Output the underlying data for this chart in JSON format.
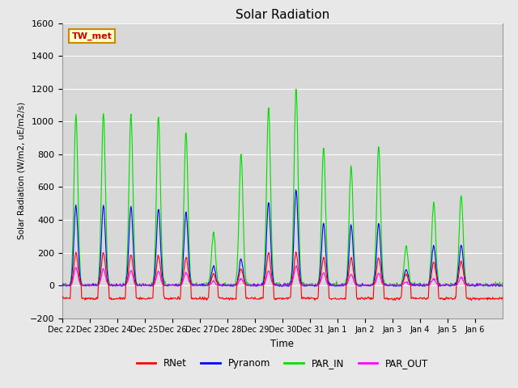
{
  "title": "Solar Radiation",
  "ylabel": "Solar Radiation (W/m2, uE/m2/s)",
  "xlabel": "Time",
  "ylim": [
    -200,
    1600
  ],
  "yticks": [
    -200,
    0,
    200,
    400,
    600,
    800,
    1000,
    1200,
    1400,
    1600
  ],
  "background_color": "#e8e8e8",
  "plot_bg_color": "#d8d8d8",
  "grid_color": "#ffffff",
  "station_label": "TW_met",
  "station_label_color": "#cc0000",
  "station_label_bg": "#ffffcc",
  "station_label_border": "#cc8800",
  "line_colors": {
    "RNet": "#ff0000",
    "Pyranom": "#0000ff",
    "PAR_IN": "#00dd00",
    "PAR_OUT": "#ff00ff"
  },
  "tick_labels": [
    "Dec 22",
    "Dec 23",
    "Dec 24",
    "Dec 25",
    "Dec 26",
    "Dec 27",
    "Dec 28",
    "Dec 29",
    "Dec 30",
    "Dec 31",
    "Jan 1",
    "Jan 2",
    "Jan 3",
    "Jan 4",
    "Jan 5",
    "Jan 6"
  ],
  "par_in_peaks": [
    1050,
    1050,
    1040,
    1030,
    940,
    330,
    800,
    1090,
    1210,
    850,
    730,
    850,
    240,
    510,
    550,
    0
  ],
  "pyranom_peaks": [
    490,
    490,
    480,
    470,
    450,
    120,
    160,
    510,
    590,
    380,
    370,
    380,
    100,
    240,
    250,
    0
  ],
  "par_out_peaks": [
    110,
    100,
    90,
    85,
    80,
    25,
    40,
    90,
    120,
    75,
    70,
    75,
    20,
    40,
    50,
    0
  ],
  "rnet_night": -80,
  "rnet_peaks": [
    200,
    200,
    190,
    180,
    170,
    70,
    100,
    200,
    200,
    170,
    170,
    170,
    70,
    140,
    150,
    0
  ]
}
